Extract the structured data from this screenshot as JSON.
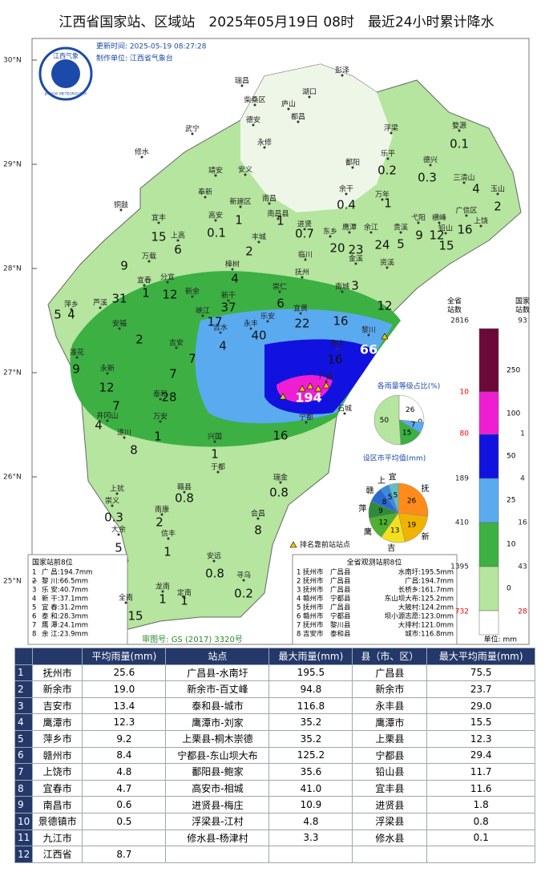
{
  "header": {
    "title": "江西省国家站、区域站　2025年05月19日 08时　最近24小时累计降水",
    "update_time": "更新时间: 2025-05-19 08:27:28",
    "producer": "制作单位: 江西省气象台",
    "map_approval": "审图号: GS (2017) 3320号"
  },
  "logo": {
    "cn": "江西气象",
    "en": "JIANGXI METEOROLOGY"
  },
  "map": {
    "lat_labels": [
      "30°N",
      "29°N",
      "28°N",
      "27°N",
      "26°N",
      "25°N"
    ],
    "marker_legend": "排名靠前站站点",
    "places": [
      "彭泽",
      "瑞昌",
      "湖口",
      "柴桑区",
      "庐山",
      "都昌",
      "德安",
      "武宁",
      "永修",
      "修水",
      "浮梁",
      "婺源",
      "乐平",
      "鄱阳",
      "德兴",
      "靖安",
      "安义",
      "三清山",
      "玉山",
      "余干",
      "万年",
      "奉新",
      "铜鼓",
      "新建区",
      "南昌",
      "南昌县",
      "进贤",
      "宜丰",
      "高安",
      "广信区",
      "弋阳",
      "横峰",
      "上饶",
      "鹰潭",
      "余江",
      "贵溪",
      "铅山",
      "上高",
      "丰城",
      "东乡",
      "万载",
      "樟树",
      "金溪",
      "资溪",
      "临川",
      "宜春",
      "分宜",
      "抚州",
      "萍乡",
      "芦溪",
      "新余",
      "新干",
      "崇仁",
      "南城",
      "峡江",
      "宜黄",
      "乐安",
      "安福",
      "吉水",
      "永丰",
      "黎川",
      "南丰",
      "莲花",
      "吉安",
      "永新",
      "泰和",
      "广昌",
      "井冈山",
      "万安",
      "石城",
      "宁都",
      "遂川",
      "兴国",
      "于都",
      "瑞金",
      "赣县",
      "上犹",
      "崇义",
      "南康",
      "会昌",
      "大余",
      "信丰",
      "安远",
      "寻乌",
      "龙南",
      "定南",
      "全南"
    ],
    "rainfall": [
      "0.1",
      "0.2",
      "0.3",
      "4",
      "2",
      "0.4",
      "1",
      "1",
      "1",
      "15",
      "0.1",
      "0.7",
      "9",
      "12",
      "16",
      "15",
      "24",
      "5",
      "20",
      "23",
      "6",
      "2",
      "9",
      "4",
      "3",
      "31",
      "1",
      "12",
      "6",
      "37",
      "12",
      "5",
      "4",
      "17",
      "22",
      "16",
      "40",
      "4",
      "2",
      "7",
      "66",
      "16",
      "9",
      "7",
      "12",
      "28",
      "194",
      "7",
      "4",
      "1",
      "16",
      "8",
      "1",
      "0.8",
      "0.8",
      "0.3",
      "2",
      "8",
      "5",
      "1",
      "0.8",
      "0.2",
      "1",
      "1",
      "15"
    ]
  },
  "legend": {
    "all_title": [
      "全省",
      "站数"
    ],
    "national_title": [
      "国家",
      "站数"
    ],
    "thresholds": [
      "250",
      "100",
      "50",
      "25",
      "10",
      "0"
    ],
    "all_counts": [
      "2816",
      "10",
      "80",
      "189",
      "410",
      "1395",
      "732"
    ],
    "national_counts": [
      "93",
      "1",
      "4",
      "16",
      "43",
      "28"
    ],
    "colors": [
      "#6b0a3a",
      "#f01ed2",
      "#1212e0",
      "#5aaaf0",
      "#3cb043",
      "#b5e59e",
      "#ffffff"
    ],
    "unit": "单位: mm"
  },
  "pie_levels": {
    "title": "各雨量等级占比(%)",
    "values": [
      26,
      0,
      7,
      15,
      50
    ],
    "colors": [
      "#ffffff",
      "#1212e0",
      "#5aaaf0",
      "#3cb043",
      "#b5e59e"
    ]
  },
  "pie_cities": {
    "title": "设区市平均值(mm)",
    "labels": [
      "抚",
      "新",
      "吉",
      "鹰",
      "萍",
      "赣",
      "上",
      "宜"
    ],
    "values": [
      26,
      19,
      13,
      12,
      9,
      8,
      5,
      5
    ],
    "colors": [
      "#ff8c1a",
      "#f0b400",
      "#f5e020",
      "#50b030",
      "#2e8b3a",
      "#2a6ad0",
      "#3a8ae0",
      "#60c0c0"
    ]
  },
  "rank_national": {
    "title": "国家站前8位",
    "rows": [
      [
        "1",
        "广 昌:194.7mm"
      ],
      [
        "2",
        "黎 川:66.5mm"
      ],
      [
        "3",
        "乐 安:40.7mm"
      ],
      [
        "4",
        "新 干:37.1mm"
      ],
      [
        "5",
        "宜 春:31.2mm"
      ],
      [
        "6",
        "泰 和:28.3mm"
      ],
      [
        "7",
        "鹰 潭:24.1mm"
      ],
      [
        "8",
        "余 江:23.9mm"
      ]
    ]
  },
  "rank_all": {
    "title": "全省观测站前8位",
    "rows": [
      [
        "1",
        "抚州市",
        "广昌县",
        "水南圩:195.5mm"
      ],
      [
        "2",
        "抚州市",
        "广昌县",
        "广昌:194.7mm"
      ],
      [
        "3",
        "抚州市",
        "广昌县",
        "长桥乡:161.7mm"
      ],
      [
        "4",
        "赣州市",
        "宁都县",
        "东山坝大布:125.2mm"
      ],
      [
        "5",
        "抚州市",
        "广昌县",
        "大陂村:124.2mm"
      ],
      [
        "6",
        "赣州市",
        "宁都县",
        "坝小源志愿:123.0mm"
      ],
      [
        "7",
        "抚州市",
        "黎川县",
        "大排村:121.0mm"
      ],
      [
        "8",
        "吉安市",
        "泰和县",
        "城市:116.8mm"
      ]
    ]
  },
  "table": {
    "header": [
      null,
      null,
      "平均雨量(mm)",
      "站点",
      "最大雨量(mm)",
      "县（市、区）",
      "最大平均雨量(mm)"
    ],
    "rows": [
      [
        "1",
        "抚州市",
        "25.6",
        "广昌县-水南圩",
        "195.5",
        "广昌县",
        "75.5"
      ],
      [
        "2",
        "新余市",
        "19.0",
        "新余市-百丈峰",
        "94.8",
        "新余市",
        "23.7"
      ],
      [
        "3",
        "吉安市",
        "13.4",
        "泰和县-城市",
        "116.8",
        "永丰县",
        "29.0"
      ],
      [
        "4",
        "鹰潭市",
        "12.3",
        "鹰潭市-刘家",
        "35.2",
        "鹰潭市",
        "15.5"
      ],
      [
        "5",
        "萍乡市",
        "9.2",
        "上栗县-桐木崇德",
        "35.2",
        "上栗县",
        "12.3"
      ],
      [
        "6",
        "赣州市",
        "8.4",
        "宁都县-东山坝大布",
        "125.2",
        "宁都县",
        "29.4"
      ],
      [
        "7",
        "上饶市",
        "4.8",
        "鄱阳县-鲍家",
        "35.6",
        "铅山县",
        "11.7"
      ],
      [
        "8",
        "宜春市",
        "4.7",
        "高安市-相城",
        "41.0",
        "宜丰县",
        "11.6"
      ],
      [
        "9",
        "南昌市",
        "0.6",
        "进贤县-梅庄",
        "10.9",
        "进贤县",
        "1.8"
      ],
      [
        "10",
        "景德镇市",
        "0.5",
        "浮梁县-江村",
        "4.8",
        "浮梁县",
        "0.8"
      ],
      [
        "11",
        "九江市",
        null,
        "修水县-杨津村",
        "3.3",
        "修水县",
        "0.1"
      ],
      [
        "12",
        "江西省",
        "8.7",
        null,
        null,
        null,
        null
      ]
    ]
  }
}
